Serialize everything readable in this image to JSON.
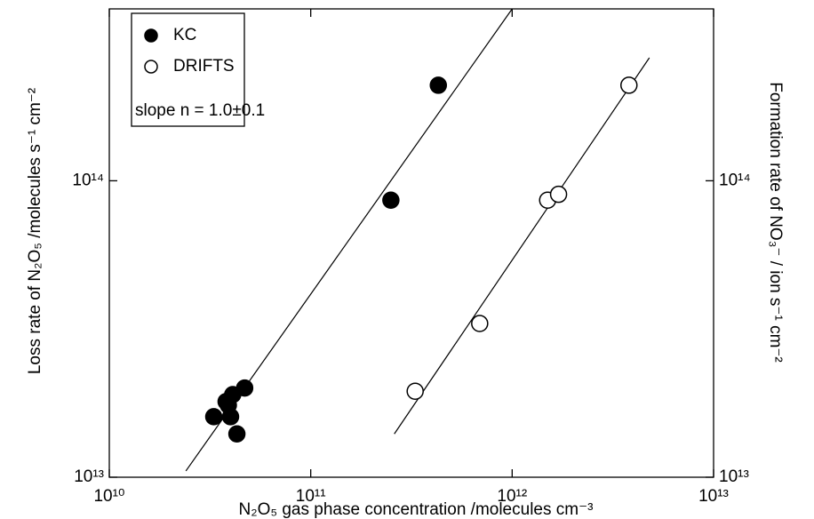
{
  "chart_data": {
    "type": "scatter",
    "x_label": "N₂O₅ gas phase concentration /molecules cm⁻³",
    "y_label": "Loss rate of N₂O₅ /molecules s⁻¹ cm⁻²",
    "y2_label": "Formation rate of NO₃⁻ / ion s⁻¹ cm⁻²",
    "annotation": "slope n = 1.0±0.1",
    "log_x": true,
    "log_y": true,
    "xlim": [
      10000000000.0,
      10000000000000.0
    ],
    "xticks": [
      {
        "value": 10000000000.0,
        "label": "10¹⁰"
      },
      {
        "value": 100000000000.0,
        "label": "10¹¹"
      },
      {
        "value": 1000000000000.0,
        "label": "10¹²"
      },
      {
        "value": 10000000000000.0,
        "label": "10¹³"
      }
    ],
    "ylim": [
      10000000000000.0,
      380000000000000.0
    ],
    "yticks": [
      {
        "value": 10000000000000.0,
        "label": "10¹³"
      },
      {
        "value": 100000000000000.0,
        "label": "10¹⁴"
      }
    ],
    "y2lim": [
      10000000000000.0,
      380000000000000.0
    ],
    "y2ticks": [
      {
        "value": 10000000000000.0,
        "label": "10¹³"
      },
      {
        "value": 100000000000000.0,
        "label": "10¹⁴"
      }
    ],
    "series": [
      {
        "name": "KC",
        "color": "#000000",
        "filled": true,
        "x": [
          33000000000.0,
          38000000000.0,
          41000000000.0,
          47000000000.0,
          40000000000.0,
          43000000000.0,
          39000000000.0,
          250000000000.0,
          430000000000.0
        ],
        "values": [
          16000000000000.0,
          18000000000000.0,
          19000000000000.0,
          20000000000000.0,
          16000000000000.0,
          14000000000000.0,
          17500000000000.0,
          86000000000000.0,
          210000000000000.0
        ],
        "fit_x": [
          24000000000.0,
          1000000000000.0
        ],
        "fit_values": [
          10500000000000.0,
          380000000000000.0
        ]
      },
      {
        "name": "DRIFTS",
        "color": "#000000",
        "filled": false,
        "x": [
          330000000000.0,
          690000000000.0,
          1500000000000.0,
          1700000000000.0,
          3800000000000.0
        ],
        "values": [
          19500000000000.0,
          33000000000000.0,
          86000000000000.0,
          90000000000000.0,
          210000000000000.0
        ],
        "fit_x": [
          260000000000.0,
          4800000000000.0
        ],
        "fit_values": [
          14000000000000.0,
          260000000000000.0
        ]
      }
    ]
  }
}
